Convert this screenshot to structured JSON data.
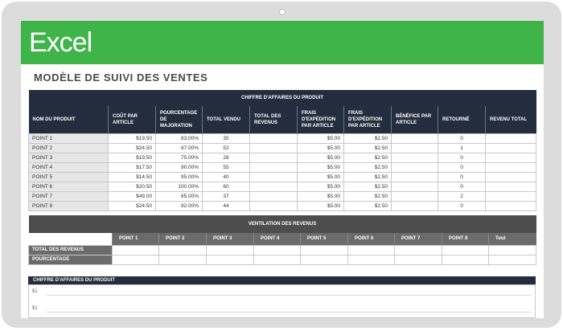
{
  "app": {
    "name": "Excel"
  },
  "sheet_title": "MODÈLE DE SUIVI DES VENTES",
  "main_table": {
    "group_header": "CHIFFRE D'AFFAIRES DU PRODUIT",
    "columns": [
      "NOM DU PRODUIT",
      "COÛT PAR ARTICLE",
      "POURCENTAGE DE MAJORATION",
      "TOTAL VENDU",
      "TOTAL DES REVENUS",
      "FRAIS D'EXPÉDITION PAR ARTICLE",
      "FRAIS D'EXPÉDITION PAR ARTICLE",
      "BÉNÉFICE PAR ARTICLE",
      "RETOURNÉ",
      "REVENU TOTAL"
    ],
    "rows": [
      [
        "POINT 1",
        "$19.50",
        "83.00%",
        "35",
        "",
        "$5.00",
        "$2.50",
        "",
        "0",
        ""
      ],
      [
        "POINT 2",
        "$24.50",
        "87.00%",
        "52",
        "",
        "$5.00",
        "$2.50",
        "",
        "1",
        ""
      ],
      [
        "POINT 3",
        "$19.50",
        "75.00%",
        "28",
        "",
        "$5.00",
        "$2.50",
        "",
        "0",
        ""
      ],
      [
        "POINT 4",
        "$17.50",
        "90.00%",
        "55",
        "",
        "$5.00",
        "$2.50",
        "",
        "0",
        ""
      ],
      [
        "POINT 5",
        "$14.50",
        "95.00%",
        "40",
        "",
        "$5.00",
        "$2.50",
        "",
        "0",
        ""
      ],
      [
        "POINT 6",
        "$20.50",
        "100.00%",
        "60",
        "",
        "$5.00",
        "$2.50",
        "",
        "0",
        ""
      ],
      [
        "POINT 7",
        "$49.00",
        "65.00%",
        "37",
        "",
        "$5.00",
        "$2.50",
        "",
        "2",
        ""
      ],
      [
        "POINT 8",
        "$24.50",
        "92.00%",
        "44",
        "",
        "$5.00",
        "$2.50",
        "",
        "0",
        ""
      ]
    ]
  },
  "breakdown_table": {
    "group_header": "VENTILATION DES REVENUS",
    "columns": [
      "POINT 1",
      "POINT 2",
      "POINT 3",
      "POINT 4",
      "POINT 5",
      "POINT 6",
      "POINT 7",
      "POINT 8",
      "Tout"
    ],
    "row_labels": [
      "TOTAL DES REVENUS",
      "POURCENTAGE"
    ]
  },
  "chart": {
    "title": "CHIFFRE D'AFFAIRES DU PRODUIT",
    "tick_labels": [
      "$1",
      "$1"
    ]
  }
}
